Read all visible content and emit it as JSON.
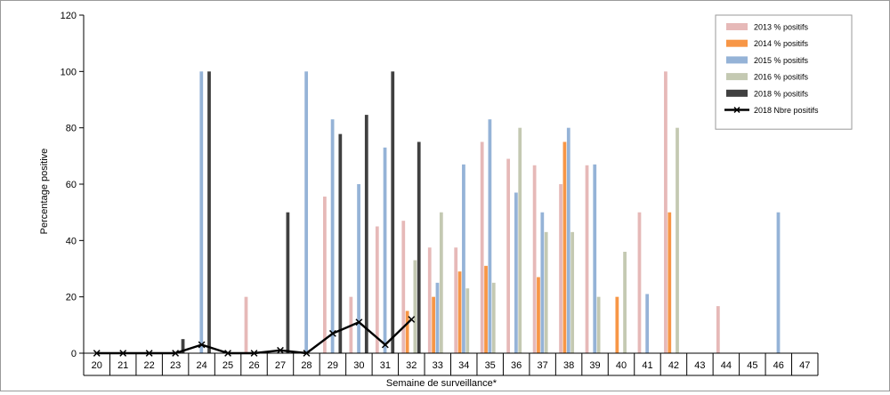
{
  "chart_data": {
    "type": "bar",
    "xlabel": "Semaine de surveillance*",
    "ylabel": "Percentage positive",
    "ylim": [
      0,
      120
    ],
    "yticks": [
      0,
      20,
      40,
      60,
      80,
      100,
      120
    ],
    "grid": false,
    "legend_position": "top-right",
    "categories": [
      "20",
      "21",
      "22",
      "23",
      "24",
      "25",
      "26",
      "27",
      "28",
      "29",
      "30",
      "31",
      "32",
      "33",
      "34",
      "35",
      "36",
      "37",
      "38",
      "39",
      "40",
      "41",
      "42",
      "43",
      "44",
      "45",
      "46",
      "47"
    ],
    "series": [
      {
        "name": "2013 % positifs",
        "kind": "bar",
        "color": "#e6b9b8",
        "values": [
          null,
          null,
          null,
          null,
          null,
          null,
          20,
          null,
          null,
          55.6,
          20,
          45,
          47,
          37.5,
          37.5,
          75,
          69,
          66.7,
          60,
          66.7,
          null,
          50,
          100,
          null,
          16.7,
          null,
          null,
          null
        ]
      },
      {
        "name": "2014 % positifs",
        "kind": "bar",
        "color": "#f79646",
        "values": [
          null,
          null,
          null,
          null,
          null,
          null,
          null,
          null,
          null,
          null,
          null,
          null,
          15,
          20,
          29,
          31,
          null,
          27,
          75,
          null,
          20,
          null,
          50,
          null,
          null,
          null,
          null,
          null
        ]
      },
      {
        "name": "2015 % positifs",
        "kind": "bar",
        "color": "#95b3d7",
        "values": [
          null,
          null,
          null,
          null,
          100,
          null,
          null,
          null,
          100,
          83,
          60,
          73,
          null,
          25,
          67,
          83,
          57,
          50,
          80,
          67,
          null,
          21,
          null,
          null,
          null,
          null,
          50,
          null
        ]
      },
      {
        "name": "2016 % positifs",
        "kind": "bar",
        "color": "#c4c9b2",
        "values": [
          null,
          null,
          null,
          null,
          null,
          null,
          null,
          null,
          null,
          null,
          null,
          null,
          33,
          50,
          23,
          25,
          80,
          43,
          43,
          20,
          36,
          null,
          80,
          null,
          null,
          null,
          null,
          null
        ]
      },
      {
        "name": "2018 % positifs",
        "kind": "bar",
        "color": "#404040",
        "values": [
          null,
          null,
          null,
          5,
          100,
          null,
          null,
          50,
          null,
          77.8,
          84.6,
          100,
          75,
          null,
          null,
          null,
          null,
          null,
          null,
          null,
          null,
          null,
          null,
          null,
          null,
          null,
          null,
          null
        ]
      },
      {
        "name": "2018 Nbre positifs",
        "kind": "line",
        "color": "#000000",
        "values": [
          0,
          0,
          0,
          0,
          3,
          0,
          0,
          1,
          0,
          7,
          11,
          3,
          12,
          null,
          null,
          null,
          null,
          null,
          null,
          null,
          null,
          null,
          null,
          null,
          null,
          null,
          null,
          null
        ]
      }
    ]
  }
}
